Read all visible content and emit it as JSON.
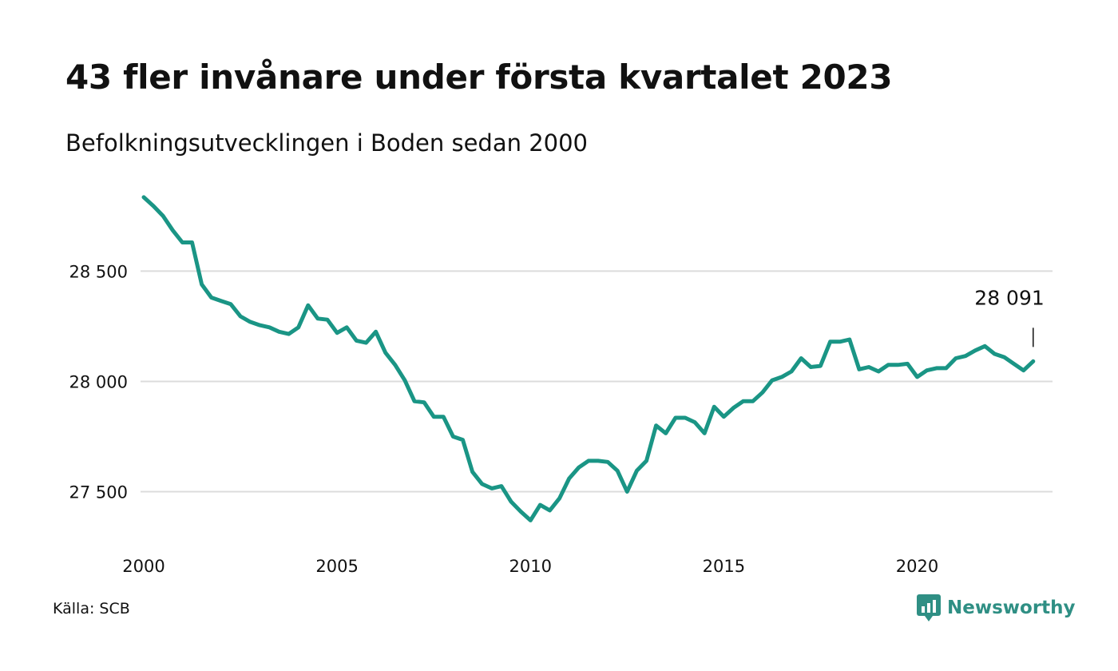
{
  "title": "43 fler invånare under första kvartalet 2023",
  "subtitle": "Befolkningsutvecklingen i Boden sedan 2000",
  "source": "Källa: SCB",
  "brand": {
    "name": "Newsworthy",
    "icon": "newsworthy-logo-icon",
    "color": "#2f8f84"
  },
  "colors": {
    "line": "#1a9585",
    "grid": "#dcdcdc",
    "text": "#111111"
  },
  "chart_data": {
    "type": "line",
    "xlim": [
      2000,
      2023.5
    ],
    "ylim": [
      27310,
      28860
    ],
    "xticks": [
      {
        "value": 2000,
        "label": "2000"
      },
      {
        "value": 2005,
        "label": "2005"
      },
      {
        "value": 2010,
        "label": "2010"
      },
      {
        "value": 2015,
        "label": "2015"
      },
      {
        "value": 2020,
        "label": "2020"
      }
    ],
    "yticks": [
      {
        "value": 27500,
        "label": "27 500"
      },
      {
        "value": 28000,
        "label": "28 000"
      },
      {
        "value": 28500,
        "label": "28 500"
      }
    ],
    "grid": true,
    "annotation": {
      "x": 2023.0,
      "y": 28091,
      "label": "28 091"
    },
    "series": [
      {
        "x": [
          2000.0,
          2000.25,
          2000.5,
          2000.75,
          2001.0,
          2001.25,
          2001.5,
          2001.75,
          2002.0,
          2002.25,
          2002.5,
          2002.75,
          2003.0,
          2003.25,
          2003.5,
          2003.75,
          2004.0,
          2004.25,
          2004.5,
          2004.75,
          2005.0,
          2005.25,
          2005.5,
          2005.75,
          2006.0,
          2006.25,
          2006.5,
          2006.75,
          2007.0,
          2007.25,
          2007.5,
          2007.75,
          2008.0,
          2008.25,
          2008.5,
          2008.75,
          2009.0,
          2009.25,
          2009.5,
          2009.75,
          2010.0,
          2010.25,
          2010.5,
          2010.75,
          2011.0,
          2011.25,
          2011.5,
          2011.75,
          2012.0,
          2012.25,
          2012.5,
          2012.75,
          2013.0,
          2013.25,
          2013.5,
          2013.75,
          2014.0,
          2014.25,
          2014.5,
          2014.75,
          2015.0,
          2015.25,
          2015.5,
          2015.75,
          2016.0,
          2016.25,
          2016.5,
          2016.75,
          2017.0,
          2017.25,
          2017.5,
          2017.75,
          2018.0,
          2018.25,
          2018.5,
          2018.75,
          2019.0,
          2019.25,
          2019.5,
          2019.75,
          2020.0,
          2020.25,
          2020.5,
          2020.75,
          2021.0,
          2021.25,
          2021.5,
          2021.75,
          2022.0,
          2022.25,
          2022.5,
          2022.75,
          2023.0
        ],
        "values": [
          28835,
          28795,
          28750,
          28685,
          28630,
          28630,
          28440,
          28380,
          28365,
          28350,
          28295,
          28270,
          28255,
          28245,
          28225,
          28215,
          28245,
          28345,
          28285,
          28280,
          28220,
          28245,
          28185,
          28175,
          28225,
          28130,
          28075,
          28005,
          27910,
          27905,
          27840,
          27840,
          27750,
          27735,
          27590,
          27535,
          27515,
          27525,
          27455,
          27410,
          27370,
          27440,
          27415,
          27470,
          27560,
          27610,
          27640,
          27640,
          27635,
          27595,
          27500,
          27595,
          27640,
          27800,
          27765,
          27835,
          27835,
          27815,
          27765,
          27885,
          27840,
          27880,
          27910,
          27910,
          27950,
          28005,
          28020,
          28045,
          28105,
          28065,
          28070,
          28180,
          28180,
          28190,
          28055,
          28065,
          28045,
          28075,
          28075,
          28080,
          28020,
          28050,
          28060,
          28060,
          28105,
          28115,
          28140,
          28160,
          28125,
          28110,
          28080,
          28050,
          28091
        ]
      }
    ]
  }
}
